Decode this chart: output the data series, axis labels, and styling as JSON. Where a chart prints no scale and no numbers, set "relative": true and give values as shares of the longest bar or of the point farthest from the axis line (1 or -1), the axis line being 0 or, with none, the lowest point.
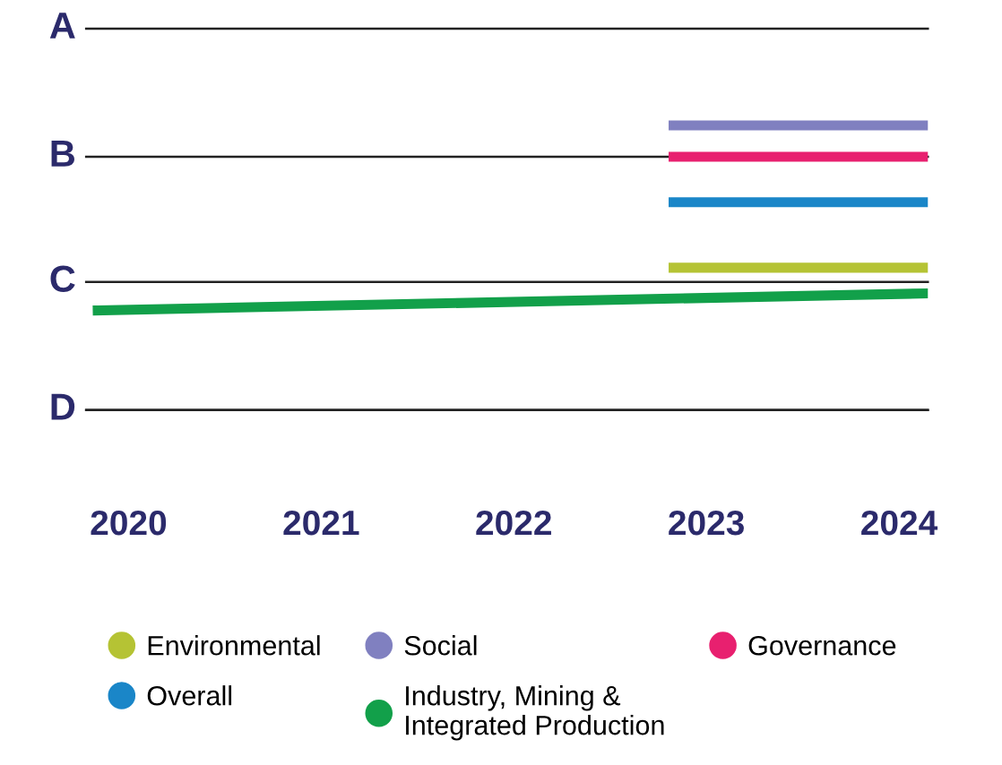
{
  "chart_data": {
    "type": "line",
    "relative": true,
    "xlim": [
      2019.78,
      2024.15
    ],
    "xticks": [
      2020,
      2021,
      2022,
      2023,
      2024
    ],
    "ref_lines": [
      {
        "axis": "y",
        "value": 1.34,
        "label": "A",
        "color": "#222222"
      },
      {
        "axis": "y",
        "value": 0.89,
        "label": "B",
        "color": "#222222"
      },
      {
        "axis": "y",
        "value": 0.45,
        "label": "C",
        "color": "#222222"
      },
      {
        "axis": "y",
        "value": 0,
        "label": "D",
        "color": "#222222"
      }
    ],
    "legend": "bottom",
    "marker": "none",
    "line_style": "solid",
    "series": [
      {
        "name": "Environmental",
        "color": "#b5c334",
        "x": [
          2022.83,
          2024.15
        ],
        "values": [
          0.5,
          0.5
        ]
      },
      {
        "name": "Social",
        "color": "#8080c0",
        "x": [
          2022.83,
          2024.15
        ],
        "values": [
          1,
          1
        ]
      },
      {
        "name": "Governance",
        "color": "#e8206f",
        "x": [
          2022.83,
          2024.15
        ],
        "values": [
          0.89,
          0.89
        ]
      },
      {
        "name": "Overall",
        "color": "#1a86c8",
        "x": [
          2022.83,
          2024.15
        ],
        "values": [
          0.73,
          0.73
        ]
      },
      {
        "name": "Industry, Mining &\nIntegrated Production",
        "color": "#12a04a",
        "x": [
          2019.84,
          2024.15
        ],
        "values": [
          0.35,
          0.41
        ]
      }
    ]
  }
}
